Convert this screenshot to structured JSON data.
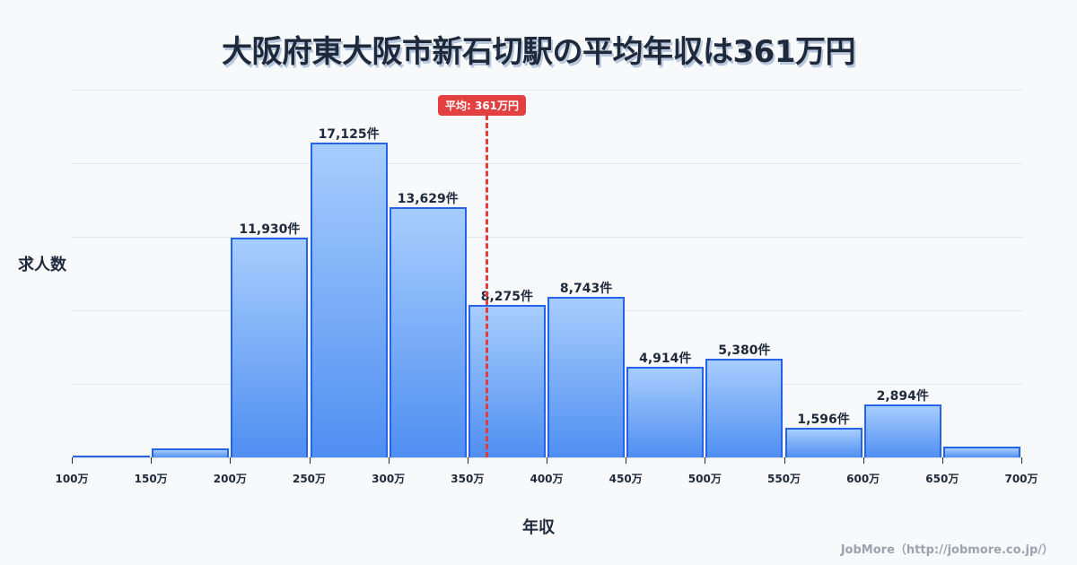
{
  "title": "大阪府東大阪市新石切駅の平均年収は361万円",
  "credit": "JobMore（http://jobmore.co.jp/）",
  "average_badge": "平均: 361万円",
  "colors": {
    "bar_fill_top": "#a7cdfd",
    "bar_fill_bottom": "#4f8ff1",
    "bar_border": "#2563eb",
    "average_line": "#e23c3c"
  },
  "chart_data": {
    "type": "bar",
    "title": "大阪府東大阪市新石切駅の平均年収は361万円",
    "xlabel": "年収",
    "ylabel": "求人数",
    "x_ticks": [
      "100万",
      "150万",
      "200万",
      "250万",
      "300万",
      "350万",
      "400万",
      "450万",
      "500万",
      "550万",
      "600万",
      "650万",
      "700万"
    ],
    "categories": [
      "100-150万",
      "150-200万",
      "200-250万",
      "250-300万",
      "300-350万",
      "350-400万",
      "400-450万",
      "450-500万",
      "500-550万",
      "550-600万",
      "600-650万",
      "650-700万"
    ],
    "values": [
      50,
      490,
      11930,
      17125,
      13629,
      8275,
      8743,
      4914,
      5380,
      1596,
      2894,
      590
    ],
    "value_labels": [
      "",
      "",
      "11,930件",
      "17,125件",
      "13,629件",
      "8,275件",
      "8,743件",
      "4,914件",
      "5,380件",
      "1,596件",
      "2,894件",
      ""
    ],
    "ylim": [
      0,
      20000
    ],
    "grid": true,
    "annotations": [
      {
        "type": "vline",
        "x": 361,
        "label": "平均: 361万円"
      }
    ]
  }
}
